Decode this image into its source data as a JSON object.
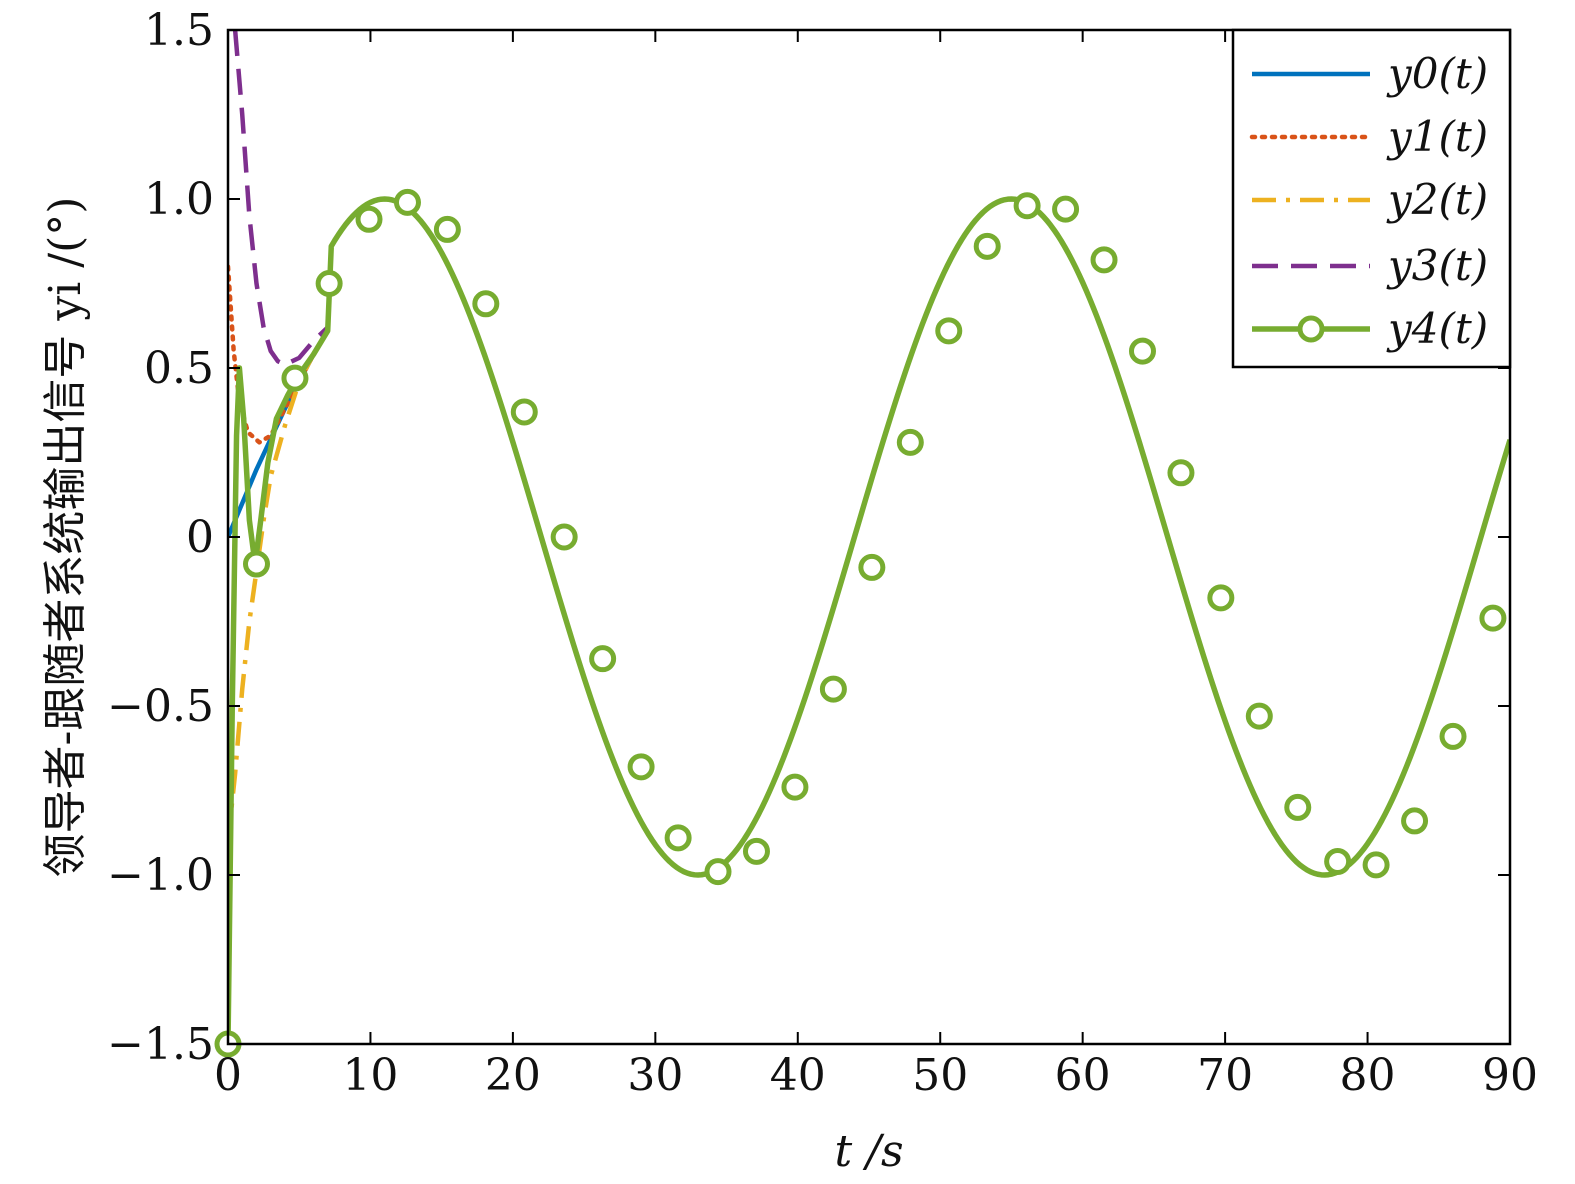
{
  "chart_data": {
    "type": "line",
    "xlabel": "t /s",
    "ylabel": "领导者-跟随者系统输出信号 yi /(°)",
    "xlim": [
      0,
      90
    ],
    "ylim": [
      -1.5,
      1.5
    ],
    "x_ticks": [
      0,
      10,
      20,
      30,
      40,
      50,
      60,
      70,
      80,
      90
    ],
    "x_tick_labels": [
      "0",
      "10",
      "20",
      "30",
      "40",
      "50",
      "60",
      "70",
      "80",
      "90"
    ],
    "y_ticks": [
      -1.5,
      -1.0,
      -0.5,
      0,
      0.5,
      1.0,
      1.5
    ],
    "y_tick_labels": [
      "−1.5",
      "−1.0",
      "−0.5",
      "0",
      "0.5",
      "1.0",
      "1.5"
    ],
    "grid": false,
    "legend_position": "top-right",
    "steady_state": {
      "form": "sin",
      "amplitude": 1.0,
      "period_s": 43.98,
      "phase": 0
    },
    "series": [
      {
        "name": "y0(t)",
        "color": "#0072BD",
        "style": "solid",
        "marker": "none",
        "transient": [
          [
            0,
            0
          ],
          [
            1,
            0.1
          ],
          [
            2,
            0.2
          ],
          [
            3,
            0.29
          ],
          [
            4,
            0.38
          ],
          [
            5,
            0.46
          ],
          [
            6,
            0.54
          ],
          [
            7,
            0.61
          ]
        ]
      },
      {
        "name": "y1(t)",
        "color": "#D95319",
        "style": "dotted",
        "marker": "none",
        "transient": [
          [
            0,
            0.8
          ],
          [
            0.4,
            0.55
          ],
          [
            0.8,
            0.4
          ],
          [
            1.4,
            0.31
          ],
          [
            2.2,
            0.28
          ],
          [
            3,
            0.3
          ],
          [
            4,
            0.38
          ],
          [
            5,
            0.46
          ],
          [
            6,
            0.54
          ],
          [
            7,
            0.61
          ]
        ]
      },
      {
        "name": "y2(t)",
        "color": "#EDB120",
        "style": "dashdot",
        "marker": "none",
        "transient": [
          [
            0,
            -0.9
          ],
          [
            0.5,
            -0.7
          ],
          [
            1,
            -0.45
          ],
          [
            1.5,
            -0.25
          ],
          [
            2,
            -0.1
          ],
          [
            2.5,
            0.05
          ],
          [
            3,
            0.18
          ],
          [
            4,
            0.33
          ],
          [
            5,
            0.46
          ],
          [
            6,
            0.54
          ],
          [
            7,
            0.61
          ]
        ]
      },
      {
        "name": "y3(t)",
        "color": "#7E2F8E",
        "style": "dashed",
        "marker": "none",
        "transient": [
          [
            0.5,
            1.5
          ],
          [
            1,
            1.25
          ],
          [
            1.5,
            0.95
          ],
          [
            2,
            0.75
          ],
          [
            2.5,
            0.62
          ],
          [
            3,
            0.55
          ],
          [
            3.5,
            0.52
          ],
          [
            4,
            0.51
          ],
          [
            5,
            0.53
          ],
          [
            6,
            0.58
          ],
          [
            7,
            0.62
          ]
        ]
      },
      {
        "name": "y4(t)",
        "color": "#77AC30",
        "style": "solid",
        "marker": "circle",
        "transient": [
          [
            0,
            -1.5
          ],
          [
            0.3,
            -0.5
          ],
          [
            0.6,
            0.3
          ],
          [
            0.8,
            0.5
          ],
          [
            1.1,
            0.35
          ],
          [
            1.5,
            0.05
          ],
          [
            1.9,
            -0.08
          ],
          [
            2.3,
            0.05
          ],
          [
            2.8,
            0.22
          ],
          [
            3.4,
            0.35
          ],
          [
            4.2,
            0.42
          ],
          [
            5,
            0.48
          ],
          [
            6,
            0.54
          ],
          [
            7,
            0.61
          ]
        ],
        "marker_points": [
          [
            0,
            -1.5
          ],
          [
            2,
            -0.08
          ],
          [
            4.7,
            0.47
          ],
          [
            7.1,
            0.75
          ],
          [
            9.9,
            0.94
          ],
          [
            12.6,
            0.99
          ],
          [
            15.4,
            0.91
          ],
          [
            18.1,
            0.69
          ],
          [
            20.8,
            0.37
          ],
          [
            23.6,
            0.0
          ],
          [
            26.3,
            -0.36
          ],
          [
            29.0,
            -0.68
          ],
          [
            31.6,
            -0.89
          ],
          [
            34.4,
            -0.99
          ],
          [
            37.1,
            -0.93
          ],
          [
            39.8,
            -0.74
          ],
          [
            42.5,
            -0.45
          ],
          [
            45.2,
            -0.09
          ],
          [
            47.9,
            0.28
          ],
          [
            50.6,
            0.61
          ],
          [
            53.3,
            0.86
          ],
          [
            56.1,
            0.98
          ],
          [
            58.8,
            0.97
          ],
          [
            61.5,
            0.82
          ],
          [
            64.2,
            0.55
          ],
          [
            66.9,
            0.19
          ],
          [
            69.7,
            -0.18
          ],
          [
            72.4,
            -0.53
          ],
          [
            75.1,
            -0.8
          ],
          [
            77.9,
            -0.96
          ],
          [
            80.6,
            -0.97
          ],
          [
            83.3,
            -0.84
          ],
          [
            86.0,
            -0.59
          ],
          [
            88.8,
            -0.24
          ]
        ]
      }
    ]
  }
}
